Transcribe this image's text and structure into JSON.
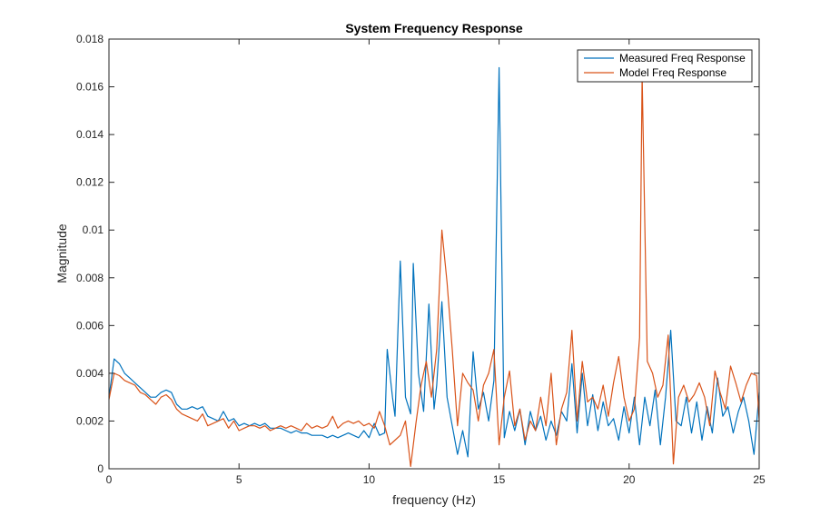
{
  "chart_data": {
    "type": "line",
    "title": "System Frequency Response",
    "xlabel": "frequency (Hz)",
    "ylabel": "Magnitude",
    "xlim": [
      0,
      25
    ],
    "ylim": [
      0,
      0.018
    ],
    "x_ticks": [
      0,
      5,
      10,
      15,
      20,
      25
    ],
    "x_tick_labels": [
      "0",
      "5",
      "10",
      "15",
      "20",
      "25"
    ],
    "y_ticks": [
      0,
      0.002,
      0.004,
      0.006,
      0.008,
      0.01,
      0.012,
      0.014,
      0.016,
      0.018
    ],
    "y_tick_labels": [
      "0",
      "0.002",
      "0.004",
      "0.006",
      "0.008",
      "0.01",
      "0.012",
      "0.014",
      "0.016",
      "0.018"
    ],
    "grid": false,
    "legend_position": "top-right",
    "series": [
      {
        "name": "Measured Freq Response",
        "color": "#0072BD",
        "points": [
          [
            0,
            0.003
          ],
          [
            0.2,
            0.0046
          ],
          [
            0.4,
            0.0044
          ],
          [
            0.6,
            0.004
          ],
          [
            0.8,
            0.0038
          ],
          [
            1.0,
            0.0036
          ],
          [
            1.2,
            0.0034
          ],
          [
            1.4,
            0.0032
          ],
          [
            1.6,
            0.003
          ],
          [
            1.8,
            0.003
          ],
          [
            2.0,
            0.0032
          ],
          [
            2.2,
            0.0033
          ],
          [
            2.4,
            0.0032
          ],
          [
            2.6,
            0.0027
          ],
          [
            2.8,
            0.0025
          ],
          [
            3.0,
            0.0025
          ],
          [
            3.2,
            0.0026
          ],
          [
            3.4,
            0.0025
          ],
          [
            3.6,
            0.0026
          ],
          [
            3.8,
            0.0022
          ],
          [
            4.0,
            0.0021
          ],
          [
            4.2,
            0.002
          ],
          [
            4.4,
            0.0024
          ],
          [
            4.6,
            0.002
          ],
          [
            4.8,
            0.0021
          ],
          [
            5.0,
            0.0018
          ],
          [
            5.2,
            0.0019
          ],
          [
            5.4,
            0.0018
          ],
          [
            5.6,
            0.0019
          ],
          [
            5.8,
            0.0018
          ],
          [
            6.0,
            0.0019
          ],
          [
            6.2,
            0.0017
          ],
          [
            6.4,
            0.0017
          ],
          [
            6.6,
            0.0017
          ],
          [
            6.8,
            0.0016
          ],
          [
            7.0,
            0.0015
          ],
          [
            7.2,
            0.0016
          ],
          [
            7.4,
            0.0015
          ],
          [
            7.6,
            0.0015
          ],
          [
            7.8,
            0.0014
          ],
          [
            8.0,
            0.0014
          ],
          [
            8.2,
            0.0014
          ],
          [
            8.4,
            0.0013
          ],
          [
            8.6,
            0.0014
          ],
          [
            8.8,
            0.0013
          ],
          [
            9.0,
            0.0014
          ],
          [
            9.2,
            0.0015
          ],
          [
            9.4,
            0.0014
          ],
          [
            9.6,
            0.0013
          ],
          [
            9.8,
            0.0016
          ],
          [
            10.0,
            0.0013
          ],
          [
            10.2,
            0.0019
          ],
          [
            10.4,
            0.0014
          ],
          [
            10.6,
            0.0015
          ],
          [
            10.7,
            0.005
          ],
          [
            10.9,
            0.003
          ],
          [
            11.0,
            0.0022
          ],
          [
            11.2,
            0.0087
          ],
          [
            11.4,
            0.003
          ],
          [
            11.6,
            0.0023
          ],
          [
            11.7,
            0.0086
          ],
          [
            11.9,
            0.004
          ],
          [
            12.1,
            0.0024
          ],
          [
            12.3,
            0.0069
          ],
          [
            12.5,
            0.0025
          ],
          [
            12.6,
            0.0035
          ],
          [
            12.8,
            0.007
          ],
          [
            13.0,
            0.003
          ],
          [
            13.2,
            0.0018
          ],
          [
            13.4,
            0.0006
          ],
          [
            13.6,
            0.0016
          ],
          [
            13.8,
            0.0005
          ],
          [
            14.0,
            0.0049
          ],
          [
            14.2,
            0.0025
          ],
          [
            14.4,
            0.0032
          ],
          [
            14.6,
            0.002
          ],
          [
            14.8,
            0.0037
          ],
          [
            15.0,
            0.0168
          ],
          [
            15.2,
            0.0013
          ],
          [
            15.4,
            0.0024
          ],
          [
            15.6,
            0.0016
          ],
          [
            15.8,
            0.0025
          ],
          [
            16.0,
            0.001
          ],
          [
            16.2,
            0.0024
          ],
          [
            16.4,
            0.0016
          ],
          [
            16.6,
            0.0022
          ],
          [
            16.8,
            0.0012
          ],
          [
            17.0,
            0.002
          ],
          [
            17.2,
            0.0014
          ],
          [
            17.4,
            0.0024
          ],
          [
            17.6,
            0.002
          ],
          [
            17.8,
            0.0044
          ],
          [
            18.0,
            0.0015
          ],
          [
            18.2,
            0.004
          ],
          [
            18.4,
            0.0018
          ],
          [
            18.6,
            0.0031
          ],
          [
            18.8,
            0.0016
          ],
          [
            19.0,
            0.0028
          ],
          [
            19.2,
            0.0018
          ],
          [
            19.4,
            0.0021
          ],
          [
            19.6,
            0.0012
          ],
          [
            19.8,
            0.0026
          ],
          [
            20.0,
            0.0015
          ],
          [
            20.2,
            0.003
          ],
          [
            20.4,
            0.001
          ],
          [
            20.6,
            0.003
          ],
          [
            20.8,
            0.0018
          ],
          [
            21.0,
            0.0033
          ],
          [
            21.2,
            0.001
          ],
          [
            21.4,
            0.003
          ],
          [
            21.6,
            0.0058
          ],
          [
            21.8,
            0.002
          ],
          [
            22.0,
            0.0018
          ],
          [
            22.2,
            0.003
          ],
          [
            22.4,
            0.0015
          ],
          [
            22.6,
            0.0028
          ],
          [
            22.8,
            0.0012
          ],
          [
            23.0,
            0.0026
          ],
          [
            23.2,
            0.0015
          ],
          [
            23.4,
            0.0038
          ],
          [
            23.6,
            0.0022
          ],
          [
            23.8,
            0.0026
          ],
          [
            24.0,
            0.0015
          ],
          [
            24.2,
            0.0024
          ],
          [
            24.4,
            0.003
          ],
          [
            24.6,
            0.002
          ],
          [
            24.8,
            0.0006
          ],
          [
            25.0,
            0.0032
          ]
        ]
      },
      {
        "name": "Model Freq Response",
        "color": "#D95319",
        "points": [
          [
            0,
            0.0029
          ],
          [
            0.2,
            0.004
          ],
          [
            0.4,
            0.0039
          ],
          [
            0.6,
            0.0037
          ],
          [
            0.8,
            0.0036
          ],
          [
            1.0,
            0.0035
          ],
          [
            1.2,
            0.0032
          ],
          [
            1.4,
            0.0031
          ],
          [
            1.6,
            0.0029
          ],
          [
            1.8,
            0.0027
          ],
          [
            2.0,
            0.003
          ],
          [
            2.2,
            0.0031
          ],
          [
            2.4,
            0.0029
          ],
          [
            2.6,
            0.0025
          ],
          [
            2.8,
            0.0023
          ],
          [
            3.0,
            0.0022
          ],
          [
            3.2,
            0.0021
          ],
          [
            3.4,
            0.002
          ],
          [
            3.6,
            0.0023
          ],
          [
            3.8,
            0.0018
          ],
          [
            4.0,
            0.0019
          ],
          [
            4.2,
            0.002
          ],
          [
            4.4,
            0.0021
          ],
          [
            4.6,
            0.0017
          ],
          [
            4.8,
            0.002
          ],
          [
            5.0,
            0.0016
          ],
          [
            5.2,
            0.0017
          ],
          [
            5.4,
            0.0018
          ],
          [
            5.6,
            0.0018
          ],
          [
            5.8,
            0.0017
          ],
          [
            6.0,
            0.0018
          ],
          [
            6.2,
            0.0016
          ],
          [
            6.4,
            0.0017
          ],
          [
            6.6,
            0.0018
          ],
          [
            6.8,
            0.0017
          ],
          [
            7.0,
            0.0018
          ],
          [
            7.2,
            0.0017
          ],
          [
            7.4,
            0.0016
          ],
          [
            7.6,
            0.0019
          ],
          [
            7.8,
            0.0017
          ],
          [
            8.0,
            0.0018
          ],
          [
            8.2,
            0.0017
          ],
          [
            8.4,
            0.0018
          ],
          [
            8.6,
            0.0022
          ],
          [
            8.8,
            0.0017
          ],
          [
            9.0,
            0.0019
          ],
          [
            9.2,
            0.002
          ],
          [
            9.4,
            0.0019
          ],
          [
            9.6,
            0.002
          ],
          [
            9.8,
            0.0018
          ],
          [
            10.0,
            0.0019
          ],
          [
            10.2,
            0.0017
          ],
          [
            10.4,
            0.0024
          ],
          [
            10.6,
            0.0018
          ],
          [
            10.8,
            0.001
          ],
          [
            11.0,
            0.0012
          ],
          [
            11.2,
            0.0014
          ],
          [
            11.4,
            0.002
          ],
          [
            11.6,
            0.0001
          ],
          [
            11.8,
            0.0019
          ],
          [
            12.0,
            0.0035
          ],
          [
            12.2,
            0.0045
          ],
          [
            12.4,
            0.003
          ],
          [
            12.6,
            0.005
          ],
          [
            12.8,
            0.01
          ],
          [
            13.0,
            0.0078
          ],
          [
            13.2,
            0.005
          ],
          [
            13.4,
            0.0018
          ],
          [
            13.6,
            0.004
          ],
          [
            13.8,
            0.0036
          ],
          [
            14.0,
            0.0033
          ],
          [
            14.2,
            0.002
          ],
          [
            14.4,
            0.0035
          ],
          [
            14.6,
            0.004
          ],
          [
            14.8,
            0.005
          ],
          [
            15.0,
            0.001
          ],
          [
            15.2,
            0.003
          ],
          [
            15.4,
            0.0041
          ],
          [
            15.6,
            0.0018
          ],
          [
            15.8,
            0.0025
          ],
          [
            16.0,
            0.0012
          ],
          [
            16.2,
            0.002
          ],
          [
            16.4,
            0.0016
          ],
          [
            16.6,
            0.003
          ],
          [
            16.8,
            0.0018
          ],
          [
            17.0,
            0.004
          ],
          [
            17.2,
            0.001
          ],
          [
            17.4,
            0.0025
          ],
          [
            17.6,
            0.0032
          ],
          [
            17.8,
            0.0058
          ],
          [
            18.0,
            0.002
          ],
          [
            18.2,
            0.0045
          ],
          [
            18.4,
            0.0028
          ],
          [
            18.6,
            0.003
          ],
          [
            18.8,
            0.0025
          ],
          [
            19.0,
            0.0035
          ],
          [
            19.2,
            0.0022
          ],
          [
            19.4,
            0.0036
          ],
          [
            19.6,
            0.0047
          ],
          [
            19.8,
            0.003
          ],
          [
            20.0,
            0.002
          ],
          [
            20.2,
            0.0025
          ],
          [
            20.4,
            0.0055
          ],
          [
            20.5,
            0.0165
          ],
          [
            20.7,
            0.0045
          ],
          [
            20.9,
            0.004
          ],
          [
            21.1,
            0.003
          ],
          [
            21.3,
            0.0035
          ],
          [
            21.5,
            0.0056
          ],
          [
            21.7,
            0.0002
          ],
          [
            21.9,
            0.003
          ],
          [
            22.1,
            0.0035
          ],
          [
            22.3,
            0.0028
          ],
          [
            22.5,
            0.0031
          ],
          [
            22.7,
            0.0036
          ],
          [
            22.9,
            0.003
          ],
          [
            23.1,
            0.0018
          ],
          [
            23.3,
            0.0041
          ],
          [
            23.5,
            0.0032
          ],
          [
            23.7,
            0.0025
          ],
          [
            23.9,
            0.0043
          ],
          [
            24.1,
            0.0036
          ],
          [
            24.3,
            0.0028
          ],
          [
            24.5,
            0.0035
          ],
          [
            24.7,
            0.004
          ],
          [
            24.9,
            0.0039
          ],
          [
            25.0,
            0.002
          ]
        ]
      }
    ]
  }
}
